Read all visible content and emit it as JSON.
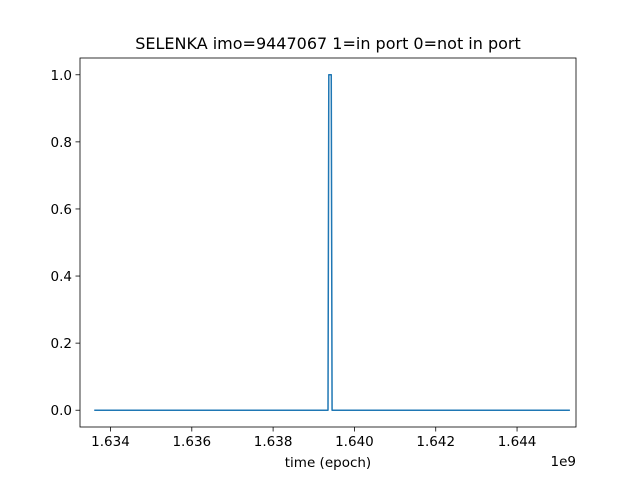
{
  "chart_data": {
    "type": "line",
    "title": "SELENKA imo=9447067 1=in port 0=not in port",
    "xlabel": "time (epoch)",
    "ylabel": "",
    "x_offset_label": "1e9",
    "xlim": [
      1.63325,
      1.64545
    ],
    "ylim": [
      -0.05,
      1.05
    ],
    "x_ticks": [
      1.634,
      1.636,
      1.638,
      1.64,
      1.642,
      1.644
    ],
    "x_tick_labels": [
      "1.634",
      "1.636",
      "1.638",
      "1.640",
      "1.642",
      "1.644"
    ],
    "y_ticks": [
      0.0,
      0.2,
      0.4,
      0.6,
      0.8,
      1.0
    ],
    "y_tick_labels": [
      "0.0",
      "0.2",
      "0.4",
      "0.6",
      "0.8",
      "1.0"
    ],
    "grid": false,
    "series": [
      {
        "color": "#1f77b4",
        "x": [
          1.6336,
          1.63935,
          1.63937,
          1.63943,
          1.63945,
          1.6453
        ],
        "y": [
          0,
          0,
          1,
          1,
          0,
          0
        ]
      }
    ]
  }
}
